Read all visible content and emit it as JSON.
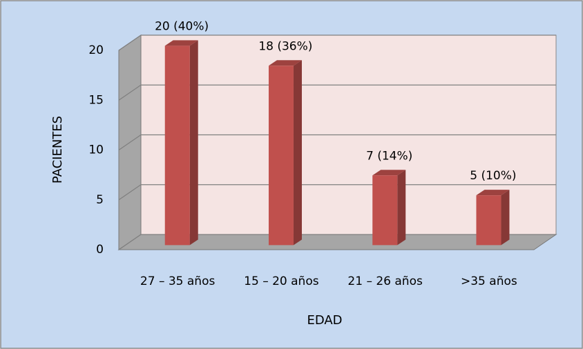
{
  "chart_data": {
    "type": "bar3d",
    "categories": [
      "27 – 35 años",
      "15 – 20 años",
      "21 – 26 años",
      ">35 años"
    ],
    "values": [
      20,
      18,
      7,
      5
    ],
    "value_labels": [
      "20 (40%)",
      "18 (36%)",
      "7 (14%)",
      "5 (10%)"
    ],
    "color": "#c0504d",
    "ylim": [
      0,
      20
    ],
    "yticks": [
      0,
      5,
      10,
      15,
      20
    ],
    "grid": true,
    "y_label": "PACIENTES",
    "x_label": "EDAD"
  }
}
